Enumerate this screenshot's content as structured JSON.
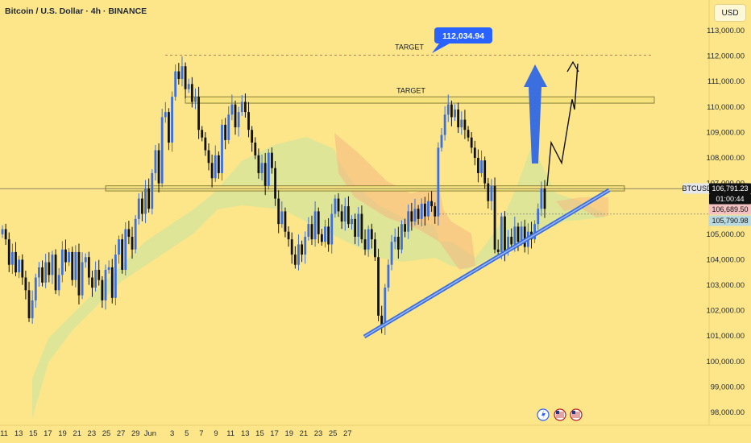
{
  "header": {
    "title": "Bitcoin / U.S. Dollar · 4h · BINANCE",
    "currency": "USD"
  },
  "annotations": {
    "target_upper_label": "TARGET",
    "target_lower_label": "TARGET",
    "target_callout": "112,034.94"
  },
  "price_tags": {
    "symbol": "BTCUSD",
    "last_price": "106,791.23",
    "countdown": "01:00:44",
    "level_1": "106,689.50",
    "level_2": "105,790.98"
  },
  "footer_icons": [
    "lightning-icon",
    "us-flag-icon",
    "us-flag-icon"
  ],
  "colors": {
    "background": "#fde68a",
    "up": "#3b6fe0",
    "down": "#111111",
    "cloud_green": "#c7e3a1",
    "cloud_red": "#f4b77f",
    "zone_fill": "#f5e27d",
    "zone_border": "#6f6a2a",
    "trendline": "#3b6fe0",
    "callout": "#2962ff"
  },
  "chart_data": {
    "type": "candlestick",
    "title": "Bitcoin / U.S. Dollar · 4h · BINANCE",
    "y_axis": {
      "ticks": [
        "113,000.00",
        "112,000.00",
        "111,000.00",
        "110,000.00",
        "109,000.00",
        "108,000.00",
        "107,000.00",
        "105,000.00",
        "104,000.00",
        "103,000.00",
        "102,000.00",
        "101,000.00",
        "100,000.00",
        "99,000.00",
        "98,000.00"
      ],
      "range": [
        97800,
        113300
      ]
    },
    "x_axis": {
      "ticks": [
        "11",
        "13",
        "15",
        "17",
        "19",
        "21",
        "23",
        "25",
        "27",
        "29",
        "Jun",
        "3",
        "5",
        "7",
        "9",
        "11",
        "13",
        "15",
        "17",
        "19",
        "21",
        "23",
        "25",
        "27"
      ],
      "range": [
        "May 11",
        "Jun 27"
      ]
    },
    "targets": [
      112034.94,
      110300
    ],
    "resistance_zone": [
      110150,
      110400
    ],
    "support_zone": [
      106700,
      106900
    ],
    "trendline": [
      {
        "date": "Jun 5",
        "price": 101000
      },
      {
        "date": "Jun 19",
        "price": 106750
      }
    ],
    "projection": [
      106900,
      108600,
      107800,
      110300,
      109900,
      111700
    ],
    "closes": [
      105200,
      104800,
      103800,
      104300,
      103500,
      104000,
      103300,
      102800,
      101700,
      102400,
      103300,
      103700,
      103100,
      103900,
      103400,
      104200,
      102800,
      103400,
      104400,
      103900,
      104300,
      103200,
      104300,
      102600,
      103900,
      104100,
      103300,
      102900,
      103600,
      103200,
      102400,
      103600,
      103700,
      102500,
      104200,
      104800,
      103600,
      105200,
      104900,
      104400,
      105600,
      106400,
      105800,
      106800,
      106000,
      107400,
      108300,
      107000,
      109600,
      109800,
      108600,
      110400,
      111400,
      111100,
      111600,
      110700,
      110900,
      110200,
      110400,
      109100,
      108800,
      108300,
      107800,
      107200,
      108100,
      107400,
      109300,
      108700,
      109700,
      110100,
      109200,
      109800,
      110200,
      109800,
      109100,
      108600,
      108100,
      107400,
      107800,
      106900,
      108200,
      107600,
      106400,
      105400,
      105900,
      105100,
      104800,
      104200,
      103800,
      104600,
      104200,
      104900,
      105400,
      104800,
      105900,
      105000,
      104700,
      105300,
      104600,
      105800,
      106400,
      105900,
      105500,
      106100,
      105400,
      105600,
      104900,
      105800,
      104800,
      104400,
      105200,
      104800,
      104100,
      101800,
      101400,
      102900,
      103800,
      104700,
      104900,
      104400,
      105400,
      105100,
      105900,
      105500,
      106000,
      105600,
      106200,
      105700,
      106300,
      106100,
      105700,
      108400,
      108900,
      109700,
      110100,
      109600,
      109900,
      109200,
      109500,
      109100,
      108800,
      108400,
      108000,
      107400,
      107900,
      107000,
      106300,
      106900,
      104400,
      104300,
      105700,
      104300,
      104900,
      104600,
      105300,
      104700,
      105300,
      104500,
      105100,
      104800,
      105400,
      106000,
      106800,
      106000
    ]
  }
}
